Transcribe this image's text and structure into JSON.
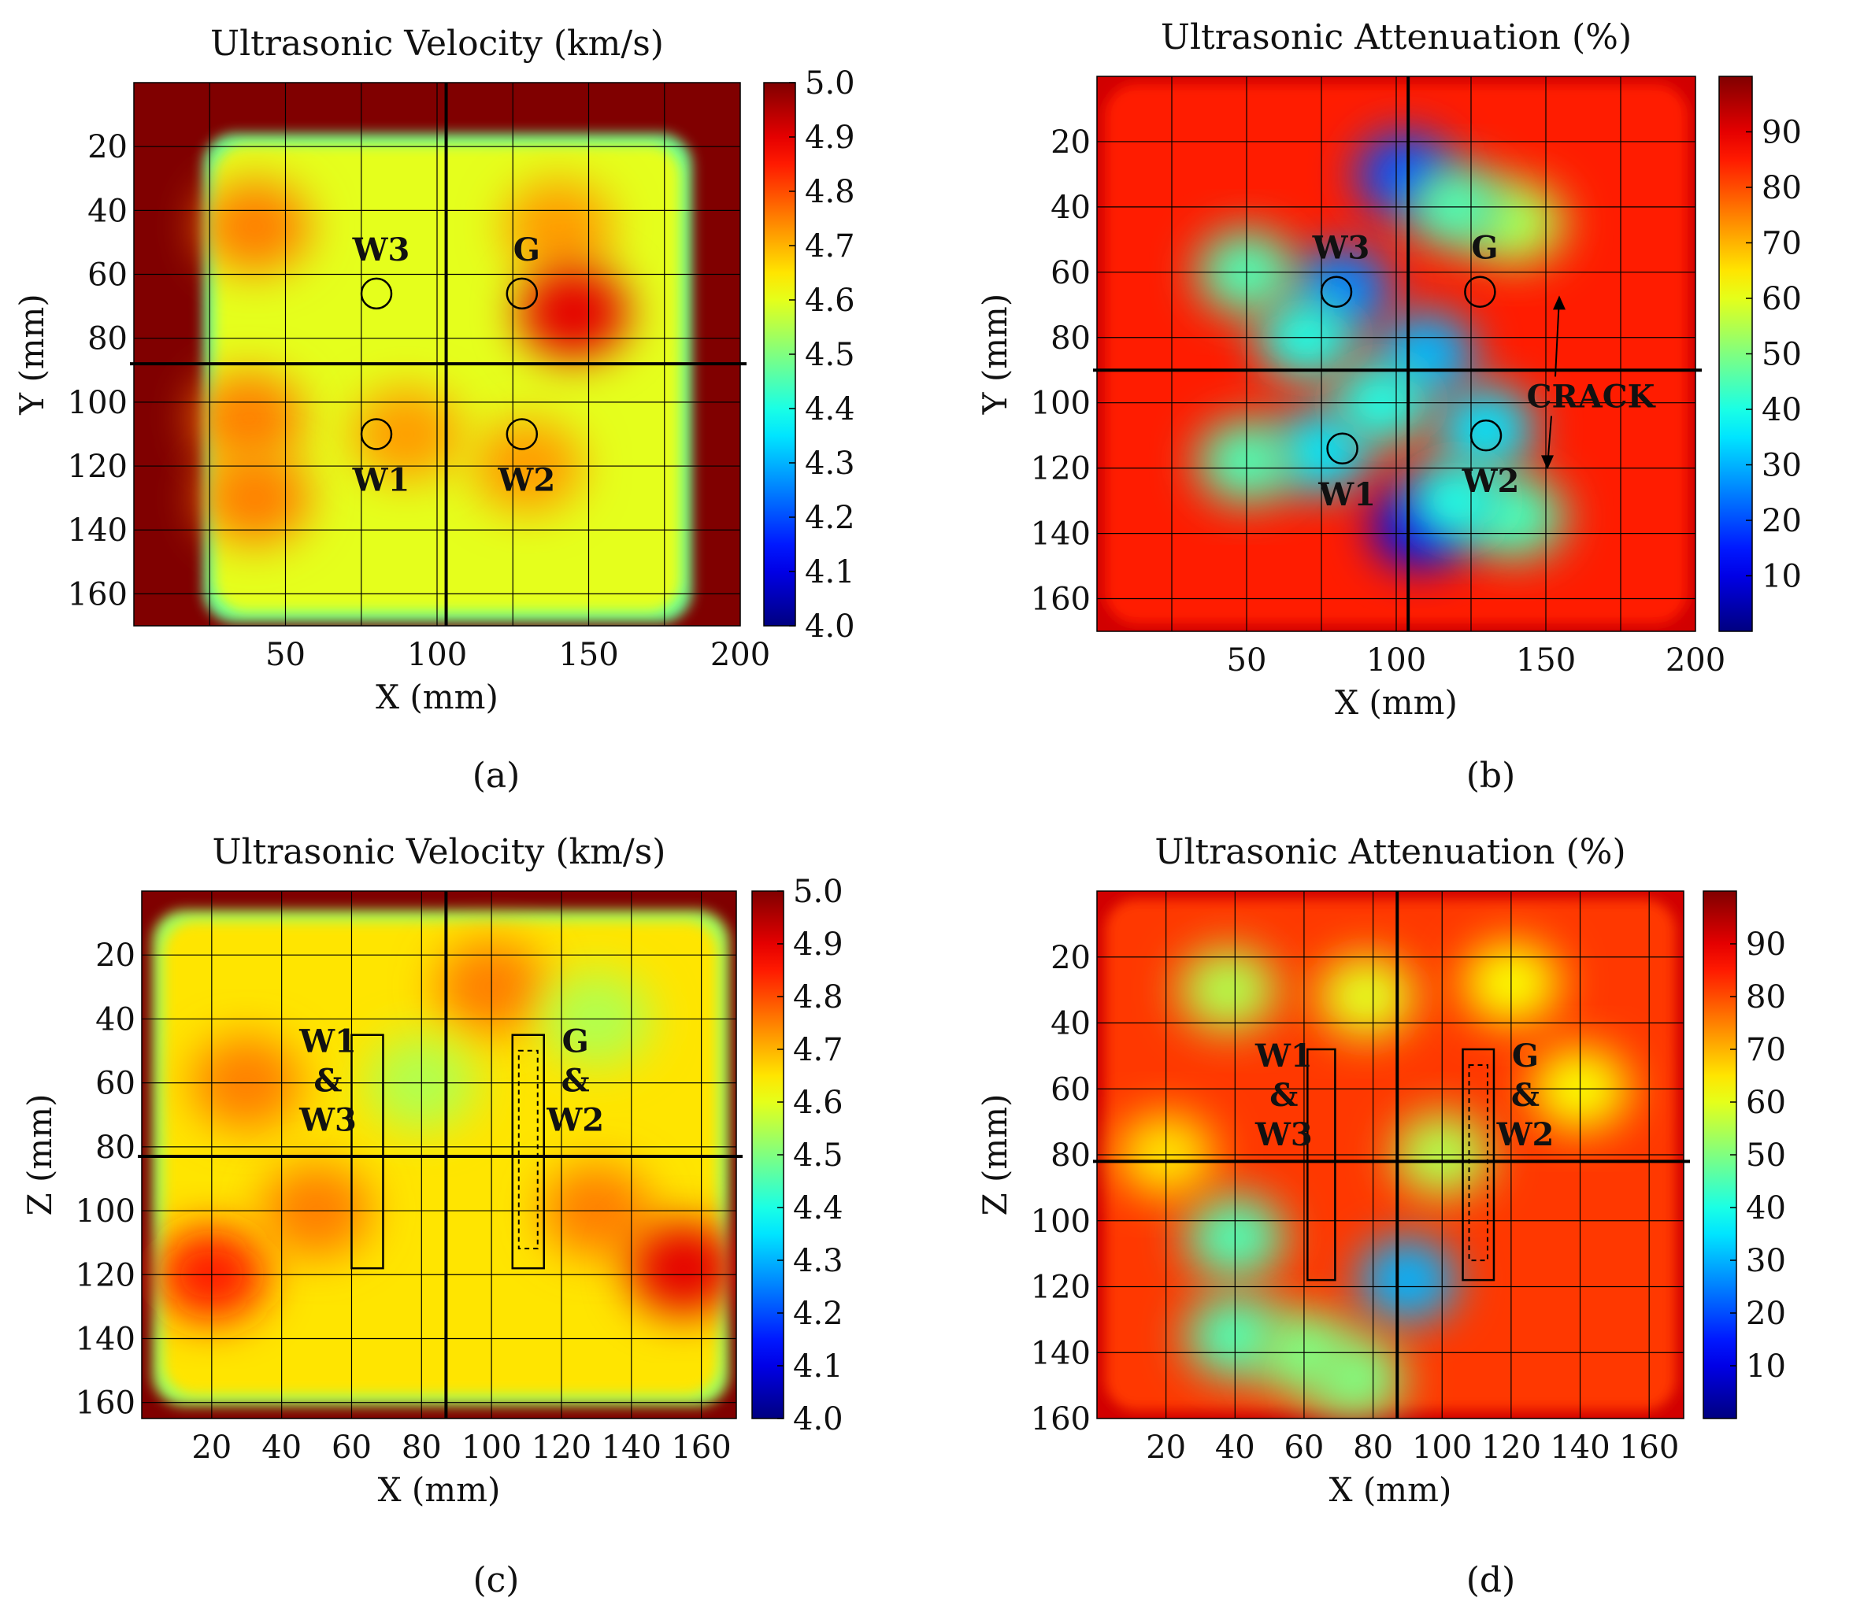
{
  "figure": {
    "panel_labels": [
      "(a)",
      "(b)",
      "(c)",
      "(d)"
    ]
  },
  "chart_data": [
    {
      "id": "a",
      "type": "heatmap",
      "title": "Ultrasonic Velocity (km/s)",
      "xlabel": "X (mm)",
      "ylabel": "Y (mm)",
      "xlim": [
        0,
        200
      ],
      "ylim": [
        0,
        170
      ],
      "xticks": [
        50,
        100,
        150,
        200
      ],
      "yticks": [
        20,
        40,
        60,
        80,
        100,
        120,
        140,
        160
      ],
      "grid_x": [
        25,
        50,
        75,
        100,
        125,
        150,
        175,
        200
      ],
      "grid_y": [
        20,
        40,
        60,
        80,
        100,
        120,
        140,
        160
      ],
      "colorbar": {
        "min": 4.0,
        "max": 5.0,
        "ticks": [
          "5.0",
          "4.9",
          "4.8",
          "4.7",
          "4.6",
          "4.5",
          "4.4",
          "4.3",
          "4.2",
          "4.1",
          "4.0"
        ]
      },
      "crosshair": {
        "x": 103,
        "y": 88
      },
      "field": {
        "background": 5.0,
        "body": 4.6,
        "body_xrange": [
          24,
          183
        ],
        "body_yrange": [
          17,
          168
        ],
        "blobs": [
          {
            "x": 40,
            "y": 45,
            "value": 4.75
          },
          {
            "x": 38,
            "y": 105,
            "value": 4.75
          },
          {
            "x": 40,
            "y": 130,
            "value": 4.75
          },
          {
            "x": 140,
            "y": 45,
            "value": 4.72
          },
          {
            "x": 130,
            "y": 120,
            "value": 4.72
          },
          {
            "x": 90,
            "y": 110,
            "value": 4.72
          },
          {
            "x": 145,
            "y": 72,
            "value": 4.9
          }
        ]
      },
      "markers": [
        {
          "type": "circle",
          "label": "W3",
          "x": 80,
          "y": 66
        },
        {
          "type": "circle",
          "label": "G",
          "x": 128,
          "y": 66
        },
        {
          "type": "circle",
          "label": "W1",
          "x": 80,
          "y": 110
        },
        {
          "type": "circle",
          "label": "W2",
          "x": 128,
          "y": 110
        }
      ]
    },
    {
      "id": "b",
      "type": "heatmap",
      "title": "Ultrasonic Attenuation (%)",
      "xlabel": "X (mm)",
      "ylabel": "Y (mm)",
      "xlim": [
        0,
        200
      ],
      "ylim": [
        0,
        170
      ],
      "xticks": [
        50,
        100,
        150,
        200
      ],
      "yticks": [
        20,
        40,
        60,
        80,
        100,
        120,
        140,
        160
      ],
      "grid_x": [
        25,
        50,
        75,
        100,
        125,
        150,
        175,
        200
      ],
      "grid_y": [
        20,
        40,
        60,
        80,
        100,
        120,
        140,
        160
      ],
      "colorbar": {
        "min": 0,
        "max": 100,
        "ticks": [
          "90",
          "80",
          "70",
          "60",
          "50",
          "40",
          "30",
          "20",
          "10"
        ]
      },
      "crosshair": {
        "x": 104,
        "y": 90
      },
      "field": {
        "background": 92,
        "body": 85,
        "body_xrange": [
          0,
          200
        ],
        "body_yrange": [
          0,
          170
        ],
        "blobs": [
          {
            "x": 103,
            "y": 30,
            "value": 20
          },
          {
            "x": 82,
            "y": 65,
            "value": 25
          },
          {
            "x": 110,
            "y": 85,
            "value": 30
          },
          {
            "x": 70,
            "y": 80,
            "value": 40
          },
          {
            "x": 50,
            "y": 60,
            "value": 45
          },
          {
            "x": 75,
            "y": 115,
            "value": 35
          },
          {
            "x": 108,
            "y": 138,
            "value": 10
          },
          {
            "x": 130,
            "y": 108,
            "value": 35
          },
          {
            "x": 50,
            "y": 118,
            "value": 45
          },
          {
            "x": 140,
            "y": 135,
            "value": 45
          },
          {
            "x": 140,
            "y": 45,
            "value": 55
          },
          {
            "x": 120,
            "y": 40,
            "value": 45
          },
          {
            "x": 95,
            "y": 100,
            "value": 40
          },
          {
            "x": 120,
            "y": 130,
            "value": 40
          }
        ]
      },
      "markers": [
        {
          "type": "circle",
          "label": "W3",
          "x": 80,
          "y": 66
        },
        {
          "type": "circle",
          "label": "G",
          "x": 128,
          "y": 66
        },
        {
          "type": "circle",
          "label": "W1",
          "x": 82,
          "y": 114
        },
        {
          "type": "circle",
          "label": "W2",
          "x": 130,
          "y": 110
        }
      ],
      "annotation": {
        "text": "CRACK",
        "x": 165,
        "y": 98
      }
    },
    {
      "id": "c",
      "type": "heatmap",
      "title": "Ultrasonic Velocity (km/s)",
      "xlabel": "X (mm)",
      "ylabel": "Z (mm)",
      "xlim": [
        0,
        170
      ],
      "ylim": [
        0,
        165
      ],
      "xticks": [
        20,
        40,
        60,
        80,
        100,
        120,
        140,
        160
      ],
      "yticks": [
        20,
        40,
        60,
        80,
        100,
        120,
        140,
        160
      ],
      "grid_x": [
        20,
        40,
        60,
        80,
        100,
        120,
        140,
        160
      ],
      "grid_y": [
        20,
        40,
        60,
        80,
        100,
        120,
        140,
        160
      ],
      "colorbar": {
        "min": 4.0,
        "max": 5.0,
        "ticks": [
          "5.0",
          "4.9",
          "4.8",
          "4.7",
          "4.6",
          "4.5",
          "4.4",
          "4.3",
          "4.2",
          "4.1",
          "4.0"
        ]
      },
      "crosshair": {
        "x": 87,
        "y": 83
      },
      "field": {
        "background": 5.0,
        "body": 4.65,
        "body_xrange": [
          4,
          167
        ],
        "body_yrange": [
          7,
          160
        ],
        "blobs": [
          {
            "x": 20,
            "y": 120,
            "value": 4.85
          },
          {
            "x": 30,
            "y": 60,
            "value": 4.75
          },
          {
            "x": 50,
            "y": 100,
            "value": 4.75
          },
          {
            "x": 100,
            "y": 30,
            "value": 4.75
          },
          {
            "x": 130,
            "y": 100,
            "value": 4.75
          },
          {
            "x": 155,
            "y": 118,
            "value": 4.9
          },
          {
            "x": 80,
            "y": 60,
            "value": 4.55
          },
          {
            "x": 130,
            "y": 40,
            "value": 4.55
          }
        ]
      },
      "markers": [
        {
          "type": "rect",
          "label_lines": [
            "W1",
            "&",
            "W3"
          ],
          "x0": 60,
          "x1": 69,
          "y0": 45,
          "y1": 118
        },
        {
          "type": "rect",
          "label_lines": [
            "G",
            "&",
            "W2"
          ],
          "x0": 106,
          "x1": 115,
          "y0": 45,
          "y1": 118,
          "dashed_inner": true
        }
      ]
    },
    {
      "id": "d",
      "type": "heatmap",
      "title": "Ultrasonic Attenuation (%)",
      "xlabel": "X (mm)",
      "ylabel": "Z (mm)",
      "xlim": [
        0,
        170
      ],
      "ylim": [
        0,
        160
      ],
      "xticks": [
        20,
        40,
        60,
        80,
        100,
        120,
        140,
        160
      ],
      "yticks": [
        20,
        40,
        60,
        80,
        100,
        120,
        140,
        160
      ],
      "grid_x": [
        20,
        40,
        60,
        80,
        100,
        120,
        140,
        160
      ],
      "grid_y": [
        20,
        40,
        60,
        80,
        100,
        120,
        140,
        160
      ],
      "colorbar": {
        "min": 0,
        "max": 100,
        "ticks": [
          "90",
          "80",
          "70",
          "60",
          "50",
          "40",
          "30",
          "20",
          "10"
        ]
      },
      "crosshair": {
        "x": 87,
        "y": 82
      },
      "field": {
        "background": 92,
        "body": 82,
        "body_xrange": [
          0,
          170
        ],
        "body_yrange": [
          0,
          160
        ],
        "blobs": [
          {
            "x": 38,
            "y": 30,
            "value": 55
          },
          {
            "x": 78,
            "y": 32,
            "value": 60
          },
          {
            "x": 120,
            "y": 28,
            "value": 62
          },
          {
            "x": 140,
            "y": 60,
            "value": 62
          },
          {
            "x": 40,
            "y": 105,
            "value": 45
          },
          {
            "x": 40,
            "y": 135,
            "value": 45
          },
          {
            "x": 60,
            "y": 140,
            "value": 50
          },
          {
            "x": 90,
            "y": 118,
            "value": 30
          },
          {
            "x": 75,
            "y": 148,
            "value": 50
          },
          {
            "x": 100,
            "y": 80,
            "value": 55
          },
          {
            "x": 20,
            "y": 80,
            "value": 65
          }
        ]
      },
      "markers": [
        {
          "type": "rect",
          "label_lines": [
            "W1",
            "&",
            "W3"
          ],
          "x0": 61,
          "x1": 69,
          "y0": 48,
          "y1": 118
        },
        {
          "type": "rect",
          "label_lines": [
            "G",
            "&",
            "W2"
          ],
          "x0": 106,
          "x1": 115,
          "y0": 48,
          "y1": 118,
          "dashed_inner": true
        }
      ]
    }
  ]
}
